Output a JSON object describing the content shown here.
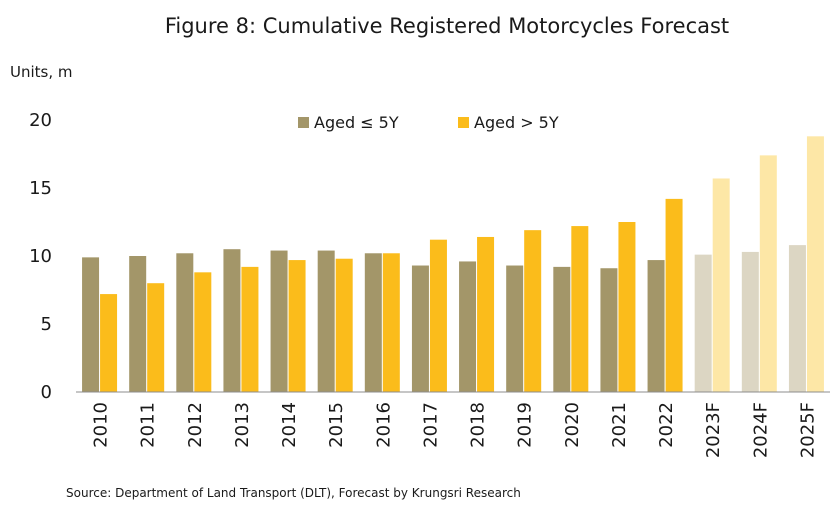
{
  "chart_data": {
    "type": "bar",
    "title": "Figure 8: Cumulative Registered Motorcycles Forecast",
    "ylabel": "Units, m",
    "source": "Source: Department of Land Transport (DLT), Forecast by Krungsri Research",
    "categories": [
      "2010",
      "2011",
      "2012",
      "2013",
      "2014",
      "2015",
      "2016",
      "2017",
      "2018",
      "2019",
      "2020",
      "2021",
      "2022",
      "2023F",
      "2024F",
      "2025F"
    ],
    "forecast_categories": [
      "2023F",
      "2024F",
      "2025F"
    ],
    "ylim": [
      0,
      20
    ],
    "yticks": [
      0,
      5,
      10,
      15,
      20
    ],
    "grid": false,
    "legend_position": "top-center",
    "series": [
      {
        "name": "Aged ≤  5Y",
        "color": "#a39669",
        "forecast_color": "#dcd6c3",
        "values": [
          9.9,
          10.0,
          10.2,
          10.5,
          10.4,
          10.4,
          10.2,
          9.3,
          9.6,
          9.3,
          9.2,
          9.1,
          9.7,
          10.1,
          10.3,
          10.8
        ]
      },
      {
        "name": "Aged > 5Y",
        "color": "#fbbc1b",
        "forecast_color": "#fde7a6",
        "values": [
          7.2,
          8.0,
          8.8,
          9.2,
          9.7,
          9.8,
          10.2,
          11.2,
          11.4,
          11.9,
          12.2,
          12.5,
          14.2,
          15.7,
          17.4,
          18.8
        ]
      }
    ]
  }
}
